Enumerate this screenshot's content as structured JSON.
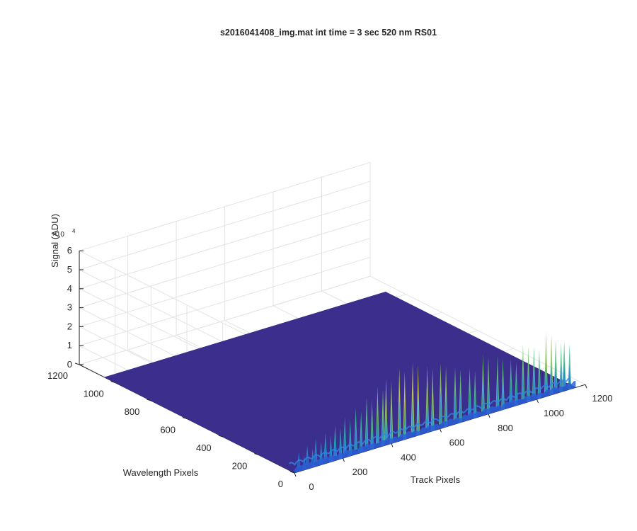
{
  "figure": {
    "title": "s2016041408_img.mat int time = 3 sec  520 nm RS01"
  },
  "chart_data": {
    "type": "surface3d",
    "title": "s2016041408_img.mat int time = 3 sec  520 nm RS01",
    "xlabel": "Track Pixels",
    "ylabel": "Wavelength Pixels",
    "zlabel": "Signal (ADU)",
    "xlim": [
      0,
      1200
    ],
    "ylim": [
      0,
      1200
    ],
    "zlim": [
      0,
      60000
    ],
    "z_exponent_label": {
      "base": "×10",
      "power": "4"
    },
    "x_ticks": [
      "0",
      "200",
      "400",
      "600",
      "800",
      "1000",
      "1200"
    ],
    "y_ticks": [
      "0",
      "200",
      "400",
      "600",
      "800",
      "1000",
      "1200"
    ],
    "z_ticks": [
      "0",
      "1",
      "2",
      "3",
      "4",
      "5",
      "6"
    ],
    "grid": true,
    "colormap": "parula",
    "colors": {
      "floor": "#3b2e8c",
      "low": "#2b6fe0",
      "mid": "#21b3b1",
      "high": "#f2d23b"
    },
    "surface_extent": {
      "x": [
        0,
        1160
      ],
      "y": [
        0,
        1060
      ]
    },
    "peak_band_y_max": 30,
    "peaks": [
      {
        "x": 40,
        "z": 8000
      },
      {
        "x": 75,
        "z": 10000
      },
      {
        "x": 110,
        "z": 12500
      },
      {
        "x": 150,
        "z": 14000
      },
      {
        "x": 190,
        "z": 16500
      },
      {
        "x": 230,
        "z": 19000
      },
      {
        "x": 275,
        "z": 22000
      },
      {
        "x": 320,
        "z": 26000
      },
      {
        "x": 365,
        "z": 30000
      },
      {
        "x": 400,
        "z": 33000
      },
      {
        "x": 455,
        "z": 36000
      },
      {
        "x": 510,
        "z": 37000
      },
      {
        "x": 570,
        "z": 33000
      },
      {
        "x": 625,
        "z": 32000
      },
      {
        "x": 685,
        "z": 28000
      },
      {
        "x": 745,
        "z": 25000
      },
      {
        "x": 800,
        "z": 30000
      },
      {
        "x": 860,
        "z": 27000
      },
      {
        "x": 915,
        "z": 23000
      },
      {
        "x": 965,
        "z": 29000
      },
      {
        "x": 1010,
        "z": 26000
      },
      {
        "x": 1060,
        "z": 32000
      },
      {
        "x": 1100,
        "z": 26000
      },
      {
        "x": 1135,
        "z": 24000
      }
    ]
  }
}
